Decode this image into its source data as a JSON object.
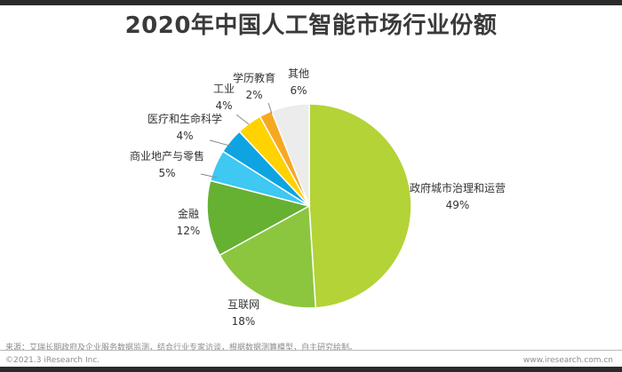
{
  "chart_data": {
    "type": "pie",
    "title": "2020年中国人工智能市场行业份额",
    "start": "top",
    "direction": "clockwise",
    "unit": "%",
    "slices": [
      {
        "label": "政府城市治理和运营",
        "value": 49,
        "display": "49%",
        "color": "#b3d337"
      },
      {
        "label": "互联网",
        "value": 18,
        "display": "18%",
        "color": "#8cc63f"
      },
      {
        "label": "金融",
        "value": 12,
        "display": "12%",
        "color": "#66b032"
      },
      {
        "label": "商业地产与零售",
        "value": 5,
        "display": "5%",
        "color": "#3ec8f2"
      },
      {
        "label": "医疗和生命科学",
        "value": 4,
        "display": "4%",
        "color": "#0ea4e2"
      },
      {
        "label": "工业",
        "value": 4,
        "display": "4%",
        "color": "#ffd200"
      },
      {
        "label": "学历教育",
        "value": 2,
        "display": "2%",
        "color": "#f7a823"
      },
      {
        "label": "其他",
        "value": 6,
        "display": "6%",
        "color": "#ececec"
      }
    ]
  },
  "footer": {
    "source": "来源：艾瑞长期政府及企业服务数据监测，结合行业专家访谈，根据数据测算模型，自主研究绘制。",
    "copyright": "©2021.3 iResearch Inc.",
    "website": "www.iresearch.com.cn"
  }
}
